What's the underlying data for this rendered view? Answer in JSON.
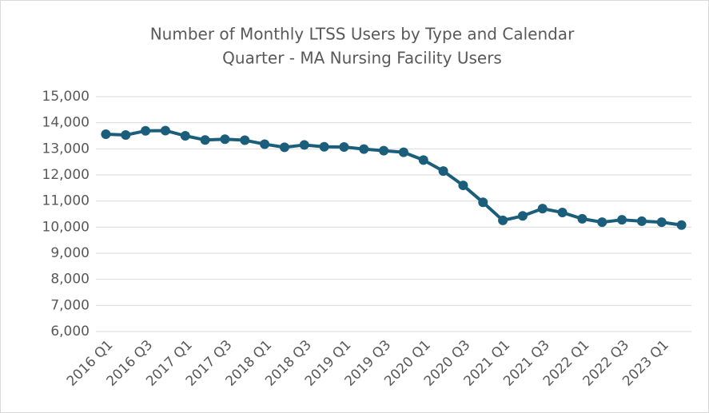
{
  "chart_data": {
    "type": "line",
    "title": [
      "Number of Monthly LTSS Users by Type and Calendar",
      "Quarter - MA Nursing Facility Users"
    ],
    "categories": [
      "2016 Q1",
      null,
      "2016 Q3",
      null,
      "2017 Q1",
      null,
      "2017 Q3",
      null,
      "2018 Q1",
      null,
      "2018 Q3",
      null,
      "2019 Q1",
      null,
      "2019 Q3",
      null,
      "2020 Q1",
      null,
      "2020 Q3",
      null,
      "2021 Q1",
      null,
      "2021 Q3",
      null,
      "2022 Q1",
      null,
      "2022 Q3",
      null,
      "2023 Q1",
      null
    ],
    "values": [
      13560,
      13530,
      13690,
      13700,
      13500,
      13340,
      13370,
      13330,
      13180,
      13060,
      13150,
      13080,
      13070,
      12990,
      12930,
      12870,
      12570,
      12150,
      11600,
      10950,
      10260,
      10430,
      10710,
      10560,
      10320,
      10190,
      10280,
      10230,
      10190,
      10080
    ],
    "color": "#1b5e7b",
    "ylim": [
      6000,
      15000
    ],
    "yticks": [
      {
        "value": 6000,
        "label": "6,000"
      },
      {
        "value": 7000,
        "label": "7,000"
      },
      {
        "value": 8000,
        "label": "8,000"
      },
      {
        "value": 9000,
        "label": "9,000"
      },
      {
        "value": 10000,
        "label": "10,000"
      },
      {
        "value": 11000,
        "label": "11,000"
      },
      {
        "value": 12000,
        "label": "12,000"
      },
      {
        "value": 13000,
        "label": "13,000"
      },
      {
        "value": 14000,
        "label": "14,000"
      },
      {
        "value": 15000,
        "label": "15,000"
      }
    ],
    "grid": true
  }
}
